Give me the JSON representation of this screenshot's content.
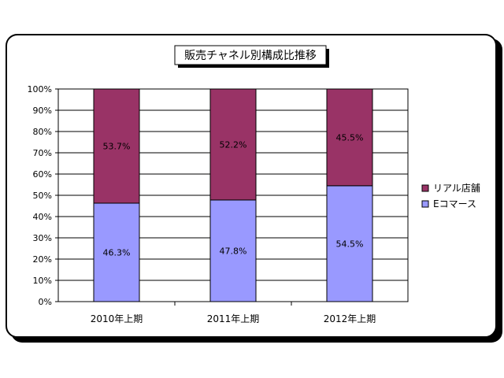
{
  "chart_data": {
    "type": "bar",
    "stacked": true,
    "title": "販売チャネル別構成比推移",
    "xlabel": "",
    "ylabel": "",
    "ylim": [
      0,
      100
    ],
    "y_ticks": [
      "0%",
      "10%",
      "20%",
      "30%",
      "40%",
      "50%",
      "60%",
      "70%",
      "80%",
      "90%",
      "100%"
    ],
    "categories": [
      "2010年上期",
      "2011年上期",
      "2012年上期"
    ],
    "series": [
      {
        "name": "Eコマース",
        "values": [
          46.3,
          47.8,
          54.5
        ],
        "labels": [
          "46.3%",
          "47.8%",
          "54.5%"
        ],
        "color": "#9999ff"
      },
      {
        "name": "リアル店舗",
        "values": [
          53.7,
          52.2,
          45.5
        ],
        "labels": [
          "53.7%",
          "52.2%",
          "45.5%"
        ],
        "color": "#993366"
      }
    ],
    "legend_order": [
      "リアル店舗",
      "Eコマース"
    ],
    "legend_position": "right",
    "grid": true,
    "gridline_color": "#000000",
    "plot_background": "#ffffff",
    "border_color": "#000000"
  }
}
